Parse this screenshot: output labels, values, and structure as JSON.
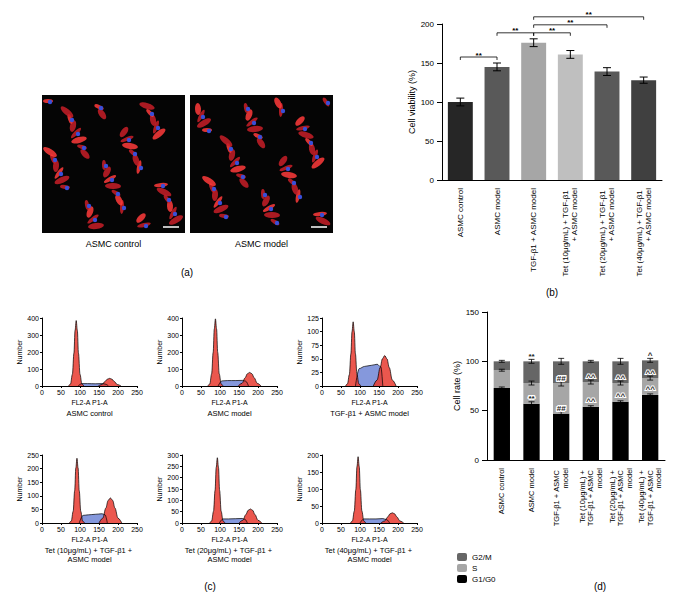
{
  "images": {
    "panel": "(a)",
    "captions": [
      "ASMC control",
      "ASMC model"
    ]
  },
  "chart_data": [
    {
      "type": "bar",
      "panel": "(b)",
      "ylabel": "Cell viability (%)",
      "categories": [
        "ASMC control",
        "ASMC model",
        "TGF-β1 + ASMC model",
        "Tet (10μg/mL) + TGF-β1 + ASMC model",
        "Tet (20μg/mL) + TGF-β1 + ASMC model",
        "Tet (40μg/mL) + TGF-β1 + ASMC model"
      ],
      "values": [
        100,
        145,
        176,
        161,
        139,
        128
      ],
      "error": [
        5,
        5,
        5,
        5,
        5,
        4
      ],
      "colors": [
        "#262626",
        "#595959",
        "#a6a6a6",
        "#bfbfbf",
        "#595959",
        "#404040"
      ],
      "ylim": [
        0,
        200
      ],
      "yticks": [
        0,
        50,
        100,
        150,
        200
      ],
      "grid": false,
      "comparisons": [
        {
          "from": 0,
          "to": 1,
          "label": "**"
        },
        {
          "from": 1,
          "to": 2,
          "label": "**"
        },
        {
          "from": 2,
          "to": 3,
          "label": "**"
        },
        {
          "from": 2,
          "to": 4,
          "label": "**"
        },
        {
          "from": 2,
          "to": 5,
          "label": "**"
        }
      ]
    },
    {
      "type": "area",
      "panel": "(c)",
      "title": "ASMC control",
      "xlabel": "FL2-A P1-A",
      "ylabel": "Number",
      "xlim": [
        0,
        250
      ],
      "xticks": [
        0,
        50,
        100,
        150,
        200,
        250
      ],
      "ylim": [
        0,
        400
      ],
      "yticks": [
        0,
        100,
        200,
        300,
        400
      ],
      "series": [
        {
          "color": "#7086d6",
          "x": [
            95,
            105,
            120,
            140,
            160,
            168,
            175
          ],
          "values": [
            0,
            14,
            14,
            13,
            14,
            10,
            0
          ]
        },
        {
          "color": "#e8392f",
          "x": [
            70,
            75,
            80,
            84,
            87,
            90,
            93,
            96,
            100,
            105,
            110
          ],
          "values": [
            0,
            12,
            69,
            193,
            327,
            385,
            327,
            193,
            69,
            12,
            0
          ]
        },
        {
          "color": "#e8392f",
          "x": [
            148,
            158,
            166,
            172,
            178,
            184,
            190,
            198,
            208
          ],
          "values": [
            0,
            9,
            27,
            40,
            45,
            40,
            27,
            9,
            0
          ]
        }
      ]
    },
    {
      "type": "area",
      "title": "ASMC model",
      "xlabel": "FL2-A P1-A",
      "ylabel": "Number",
      "xlim": [
        0,
        250
      ],
      "xticks": [
        0,
        50,
        100,
        150,
        200,
        250
      ],
      "ylim": [
        0,
        400
      ],
      "yticks": [
        0,
        100,
        200,
        300,
        400
      ],
      "series": [
        {
          "color": "#7086d6",
          "x": [
            95,
            105,
            120,
            140,
            160,
            168,
            175
          ],
          "values": [
            0,
            30,
            32,
            32,
            33,
            28,
            0
          ]
        },
        {
          "color": "#e8392f",
          "x": [
            68,
            73,
            78,
            82,
            85,
            88,
            91,
            94,
            98,
            103,
            108
          ],
          "values": [
            0,
            12,
            71,
            198,
            336,
            395,
            336,
            198,
            71,
            12,
            0
          ]
        },
        {
          "color": "#e8392f",
          "x": [
            148,
            158,
            166,
            172,
            178,
            184,
            190,
            198,
            208
          ],
          "values": [
            0,
            16,
            48,
            72,
            80,
            72,
            48,
            16,
            0
          ]
        }
      ]
    },
    {
      "type": "area",
      "title": "TGF-β1 + ASMC model",
      "xlabel": "FL2-A P1-A",
      "ylabel": "Number",
      "xlim": [
        0,
        250
      ],
      "xticks": [
        0,
        50,
        100,
        150,
        200,
        250
      ],
      "ylim": [
        0,
        125
      ],
      "yticks": [
        0,
        25,
        50,
        75,
        100,
        125
      ],
      "series": [
        {
          "color": "#7086d6",
          "x": [
            88,
            98,
            112,
            130,
            145,
            155,
            160
          ],
          "values": [
            0,
            32,
            36,
            38,
            40,
            35,
            0
          ]
        },
        {
          "color": "#e8392f",
          "x": [
            62,
            67,
            72,
            76,
            79,
            82,
            85,
            88,
            92,
            97,
            102
          ],
          "values": [
            0,
            4,
            21,
            59,
            100,
            118,
            100,
            59,
            21,
            4,
            0
          ]
        },
        {
          "color": "#e8392f",
          "x": [
            135,
            145,
            153,
            159,
            165,
            171,
            177,
            185,
            195
          ],
          "values": [
            0,
            11,
            34,
            50,
            56,
            50,
            34,
            11,
            0
          ]
        }
      ]
    },
    {
      "type": "area",
      "title": "Tet (10μg/mL) + TGF-β1 + ASMC model",
      "xlabel": "FL2-A P1-A",
      "ylabel": "Number",
      "xlim": [
        0,
        250
      ],
      "xticks": [
        0,
        50,
        100,
        150,
        200,
        250
      ],
      "ylim": [
        0,
        250
      ],
      "yticks": [
        0,
        50,
        100,
        150,
        200,
        250
      ],
      "series": [
        {
          "color": "#7086d6",
          "x": [
            98,
            108,
            122,
            140,
            158,
            166,
            172
          ],
          "values": [
            0,
            28,
            30,
            32,
            34,
            30,
            0
          ]
        },
        {
          "color": "#e8392f",
          "x": [
            72,
            77,
            82,
            86,
            89,
            92,
            95,
            98,
            102,
            107,
            112
          ],
          "values": [
            0,
            7,
            43,
            119,
            202,
            238,
            202,
            119,
            43,
            7,
            0
          ]
        },
        {
          "color": "#e8392f",
          "x": [
            150,
            160,
            168,
            174,
            180,
            186,
            192,
            200,
            210
          ],
          "values": [
            0,
            18,
            55,
            83,
            92,
            83,
            55,
            18,
            0
          ]
        }
      ]
    },
    {
      "type": "area",
      "title": "Tet (20μg/mL) + TGF-β1 + ASMC model",
      "xlabel": "FL2-A P1-A",
      "ylabel": "Number",
      "xlim": [
        0,
        250
      ],
      "xticks": [
        0,
        50,
        100,
        150,
        200,
        250
      ],
      "ylim": [
        0,
        300
      ],
      "yticks": [
        0,
        50,
        100,
        150,
        200,
        250,
        300
      ],
      "series": [
        {
          "color": "#7086d6",
          "x": [
            98,
            108,
            122,
            140,
            158,
            166,
            172
          ],
          "values": [
            0,
            18,
            18,
            19,
            20,
            16,
            0
          ]
        },
        {
          "color": "#e8392f",
          "x": [
            73,
            78,
            83,
            87,
            90,
            93,
            96,
            99,
            103,
            108,
            113
          ],
          "values": [
            0,
            9,
            52,
            144,
            245,
            288,
            245,
            144,
            52,
            9,
            0
          ]
        },
        {
          "color": "#e8392f",
          "x": [
            150,
            160,
            168,
            174,
            180,
            186,
            192,
            200,
            210
          ],
          "values": [
            0,
            12,
            37,
            56,
            62,
            56,
            37,
            12,
            0
          ]
        }
      ]
    },
    {
      "type": "area",
      "title": "Tet (40μg/mL) + TGF-β1 + ASMC model",
      "xlabel": "FL2-A P1-A",
      "ylabel": "Number",
      "xlim": [
        0,
        250
      ],
      "xticks": [
        0,
        50,
        100,
        150,
        200,
        250
      ],
      "ylim": [
        0,
        200
      ],
      "yticks": [
        0,
        50,
        100,
        150,
        200
      ],
      "series": [
        {
          "color": "#7086d6",
          "x": [
            100,
            110,
            125,
            142,
            160,
            170,
            178
          ],
          "values": [
            0,
            12,
            12,
            12,
            13,
            10,
            0
          ]
        },
        {
          "color": "#e8392f",
          "x": [
            75,
            80,
            85,
            89,
            92,
            95,
            98,
            101,
            105,
            110,
            115
          ],
          "values": [
            0,
            6,
            35,
            98,
            166,
            195,
            166,
            98,
            35,
            6,
            0
          ]
        },
        {
          "color": "#e8392f",
          "x": [
            155,
            165,
            173,
            179,
            185,
            191,
            197,
            205,
            215
          ],
          "values": [
            0,
            6,
            18,
            27,
            30,
            27,
            18,
            6,
            0
          ]
        }
      ]
    },
    {
      "type": "bar",
      "panel": "(d)",
      "ylabel": "Cell rate (%)",
      "stacked": true,
      "legend": "bottom-left",
      "categories": [
        "ASMC control",
        "ASMC model",
        "TGF-β1 + ASMC model",
        "Tet (10μg/mL) + TGF-β1 + ASMC model",
        "Tet (20μg/mL) + TGF-β1 + ASMC model",
        "Tet (40μg/mL) + TGF-β1 + ASMC model"
      ],
      "ylim": [
        0,
        150
      ],
      "yticks": [
        0,
        50,
        100,
        150
      ],
      "grid": false,
      "series": [
        {
          "name": "G1/G0",
          "color": "#000000",
          "values": [
            73,
            57,
            47,
            54,
            59,
            66
          ],
          "error": [
            1,
            2,
            2,
            1,
            1,
            1
          ]
        },
        {
          "name": "S",
          "color": "#a6a6a6",
          "values": [
            18,
            21,
            31,
            25,
            19,
            17
          ],
          "error": [
            1,
            2,
            3,
            2,
            2,
            2
          ]
        },
        {
          "name": "G2/M",
          "color": "#666666",
          "values": [
            9,
            22,
            22,
            21,
            22,
            18
          ],
          "error": [
            1,
            2,
            3,
            1,
            3,
            2
          ]
        }
      ],
      "annotations": [
        {
          "category": 1,
          "series": "G2/M",
          "label": "**"
        },
        {
          "category": 1,
          "series": "G1/G0",
          "label": "**"
        },
        {
          "category": 2,
          "series": "S",
          "label": "##"
        },
        {
          "category": 2,
          "series": "G1/G0",
          "label": "##"
        },
        {
          "category": 3,
          "series": "S",
          "label": "^^"
        },
        {
          "category": 3,
          "series": "G1/G0",
          "label": "^^"
        },
        {
          "category": 4,
          "series": "S",
          "label": "^^"
        },
        {
          "category": 4,
          "series": "G1/G0",
          "label": "^^"
        },
        {
          "category": 5,
          "series": "G2/M",
          "label": "^"
        },
        {
          "category": 5,
          "series": "S",
          "label": "^^"
        },
        {
          "category": 5,
          "series": "G1/G0",
          "label": "^^"
        }
      ]
    }
  ]
}
